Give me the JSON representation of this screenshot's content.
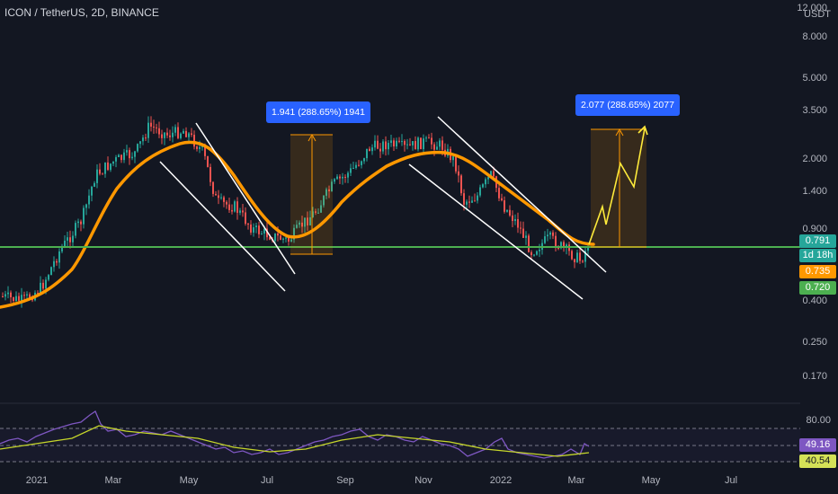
{
  "header": {
    "title": "ICON / TetherUS, 2D, BINANCE"
  },
  "price_axis": {
    "currency": "USDT",
    "ticks": [
      "12.000",
      "8.000",
      "5.000",
      "3.500",
      "2.000",
      "1.400",
      "0.900",
      "0.400",
      "0.250",
      "0.170"
    ],
    "last_price": "0.791",
    "countdown": "1d 18h",
    "ma_value": "0.735",
    "support_value": "0.720"
  },
  "rsi_axis": {
    "upper_band": "80.00",
    "rsi_value": "49.16",
    "rsi_ma_value": "40.54"
  },
  "time_axis": {
    "labels": [
      "2021",
      "Mar",
      "May",
      "Jul",
      "Sep",
      "Nov",
      "2022",
      "Mar",
      "May",
      "Jul"
    ]
  },
  "annotations": {
    "projection_1": "1.941 (288.65%) 1941",
    "projection_2": "2.077 (288.65%) 2077"
  },
  "colors": {
    "background": "#131722",
    "bull": "#26a69a",
    "bear": "#ef5350",
    "moving_average": "#ff9800",
    "support": "#4caf50",
    "projection_path": "#ffeb3b",
    "rsi_line": "#7e57c2",
    "rsi_ma": "#c6d62a",
    "badge": "#2962ff"
  }
}
